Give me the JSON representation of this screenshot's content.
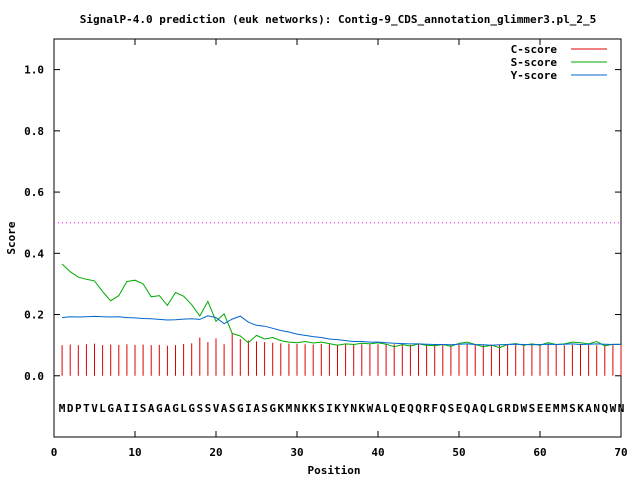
{
  "chart_data": {
    "type": "line",
    "title": "SignalP-4.0 prediction (euk networks): Contig-9_CDS_annotation_glimmer3.pl_2_5",
    "xlabel": "Position",
    "ylabel": "Score",
    "xlim": [
      0,
      70
    ],
    "ylim": [
      -0.2,
      1.1
    ],
    "xticks": [
      0,
      10,
      20,
      30,
      40,
      50,
      60,
      70
    ],
    "yticks": [
      0.0,
      0.2,
      0.4,
      0.6,
      0.8,
      1.0
    ],
    "ytick_labels": [
      "0.0",
      "0.2",
      "0.4",
      "0.6",
      "0.8",
      "1.0"
    ],
    "legend_position": "top-right",
    "grid": false,
    "threshold": {
      "value": 0.5,
      "color": "#ff00ff",
      "style": "dotted"
    },
    "sequence": "MDPTVLGAIISAGAGLGSSVASGIASGKMNKKSIKYNKWALQEQQRFQSEQAQLGRDWSEEMMSKANQWN",
    "series": [
      {
        "name": "C-score",
        "color": "#dd0000",
        "style": "impulses",
        "values": [
          0.1,
          0.102,
          0.1,
          0.103,
          0.105,
          0.1,
          0.102,
          0.101,
          0.103,
          0.101,
          0.102,
          0.1,
          0.101,
          0.098,
          0.1,
          0.104,
          0.106,
          0.125,
          0.11,
          0.122,
          0.103,
          0.14,
          0.12,
          0.115,
          0.112,
          0.11,
          0.108,
          0.106,
          0.105,
          0.104,
          0.103,
          0.102,
          0.104,
          0.103,
          0.102,
          0.103,
          0.104,
          0.103,
          0.102,
          0.103,
          0.104,
          0.103,
          0.102,
          0.101,
          0.102,
          0.101,
          0.102,
          0.101,
          0.1,
          0.101,
          0.102,
          0.101,
          0.102,
          0.101,
          0.1,
          0.101,
          0.102,
          0.101,
          0.1,
          0.101,
          0.102,
          0.101,
          0.1,
          0.101,
          0.102,
          0.101,
          0.1,
          0.101,
          0.1,
          0.101
        ]
      },
      {
        "name": "S-score",
        "color": "#00aa00",
        "style": "line",
        "values": [
          0.365,
          0.34,
          0.322,
          0.315,
          0.31,
          0.275,
          0.245,
          0.262,
          0.308,
          0.312,
          0.3,
          0.258,
          0.262,
          0.23,
          0.272,
          0.26,
          0.232,
          0.195,
          0.243,
          0.178,
          0.202,
          0.138,
          0.13,
          0.108,
          0.132,
          0.12,
          0.125,
          0.115,
          0.11,
          0.108,
          0.112,
          0.107,
          0.11,
          0.105,
          0.1,
          0.104,
          0.102,
          0.106,
          0.104,
          0.108,
          0.103,
          0.095,
          0.102,
          0.097,
          0.104,
          0.1,
          0.098,
          0.102,
          0.096,
          0.106,
          0.11,
          0.102,
          0.095,
          0.1,
          0.092,
          0.102,
          0.105,
          0.1,
          0.104,
          0.1,
          0.108,
          0.102,
          0.104,
          0.11,
          0.108,
          0.104,
          0.112,
          0.098,
          0.103,
          0.102
        ]
      },
      {
        "name": "Y-score",
        "color": "#0066cc",
        "style": "line",
        "values": [
          0.19,
          0.193,
          0.192,
          0.193,
          0.194,
          0.193,
          0.192,
          0.193,
          0.19,
          0.189,
          0.187,
          0.186,
          0.184,
          0.182,
          0.183,
          0.185,
          0.186,
          0.184,
          0.196,
          0.19,
          0.17,
          0.185,
          0.195,
          0.175,
          0.165,
          0.162,
          0.155,
          0.148,
          0.143,
          0.136,
          0.132,
          0.128,
          0.125,
          0.12,
          0.118,
          0.115,
          0.112,
          0.112,
          0.11,
          0.11,
          0.108,
          0.106,
          0.105,
          0.104,
          0.104,
          0.103,
          0.102,
          0.102,
          0.101,
          0.103,
          0.104,
          0.102,
          0.101,
          0.1,
          0.101,
          0.102,
          0.103,
          0.102,
          0.101,
          0.102,
          0.103,
          0.102,
          0.103,
          0.104,
          0.102,
          0.103,
          0.104,
          0.103,
          0.102,
          0.103
        ]
      }
    ]
  }
}
